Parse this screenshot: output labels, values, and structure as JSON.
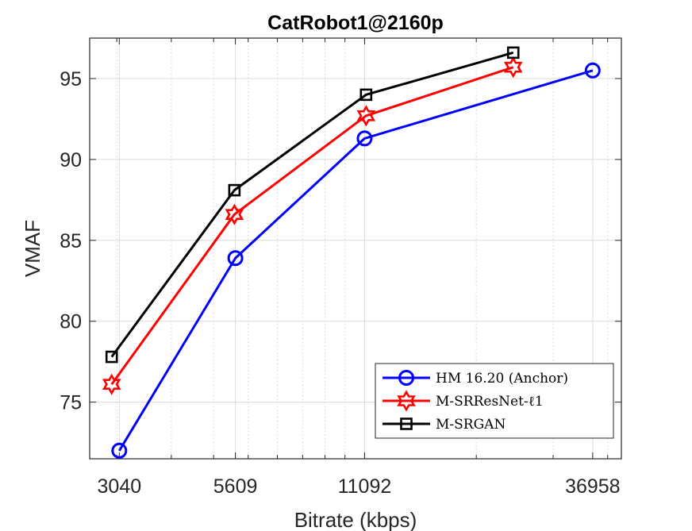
{
  "chart_data": {
    "type": "line",
    "title": "CatRobot1@2160p",
    "xlabel": "Bitrate (kbps)",
    "ylabel": "VMAF",
    "x_scale": "log",
    "xlim": [
      2600,
      43000
    ],
    "ylim": [
      71.5,
      97.5
    ],
    "x_ticks": [
      3040,
      5609,
      11092,
      36958
    ],
    "y_ticks": [
      75,
      80,
      85,
      90,
      95
    ],
    "grid": true,
    "legend_position": "bottom-right",
    "series": [
      {
        "name": "HM 16.20 (Anchor)",
        "color": "#0000ff",
        "marker": "circle",
        "x": [
          3040,
          5609,
          11092,
          36958
        ],
        "y": [
          72.0,
          83.9,
          91.3,
          95.5
        ]
      },
      {
        "name": "M-SRResNet-ℓ1",
        "color": "#ff0000",
        "marker": "hexagram",
        "x": [
          2920,
          5580,
          11180,
          24300
        ],
        "y": [
          76.1,
          86.6,
          92.7,
          95.7
        ]
      },
      {
        "name": "M-SRGAN",
        "color": "#000000",
        "marker": "square",
        "x": [
          2920,
          5580,
          11180,
          24300
        ],
        "y": [
          77.8,
          88.1,
          94.0,
          96.6
        ]
      }
    ]
  }
}
